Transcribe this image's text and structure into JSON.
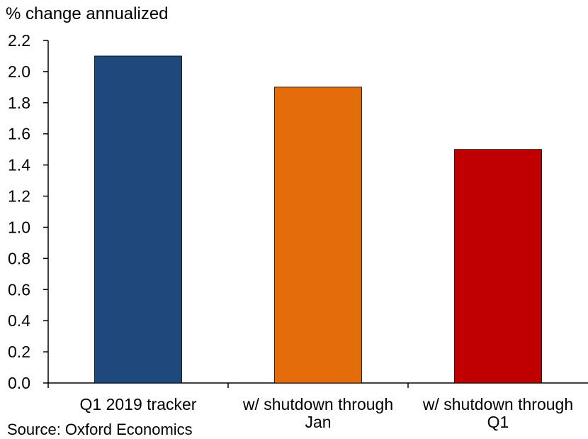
{
  "chart_data": {
    "type": "bar",
    "title": "",
    "xlabel": "",
    "ylabel": "% change annualized",
    "ylim": [
      0,
      2.2
    ],
    "yticks": [
      "0.0",
      "0.2",
      "0.4",
      "0.6",
      "0.8",
      "1.0",
      "1.2",
      "1.4",
      "1.6",
      "1.8",
      "2.0",
      "2.2"
    ],
    "categories": [
      [
        "Q1 2019 tracker"
      ],
      [
        "w/ shutdown through",
        "Jan"
      ],
      [
        "w/ shutdown through",
        "Q1"
      ]
    ],
    "values": [
      2.1,
      1.9,
      1.5
    ],
    "colors": [
      "#1F497D",
      "#E36C0A",
      "#C00000"
    ],
    "grid": false,
    "source": "Source: Oxford Economics"
  }
}
